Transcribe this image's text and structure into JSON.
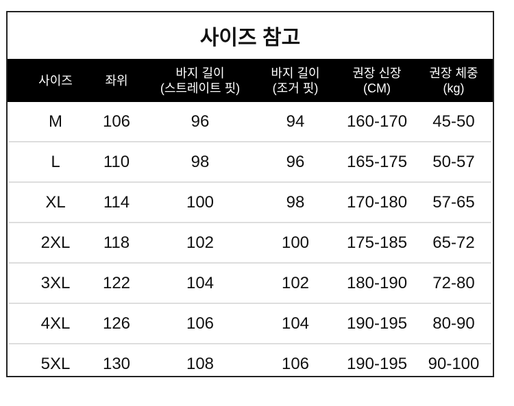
{
  "title": "사이즈 참고",
  "headers": [
    {
      "line1": "사이즈",
      "line2": ""
    },
    {
      "line1": "좌위",
      "line2": ""
    },
    {
      "line1": "바지 길이",
      "line2": "(스트레이트 핏)"
    },
    {
      "line1": "바지 길이",
      "line2": "(조거 핏)"
    },
    {
      "line1": "권장 신장",
      "line2": "(CM)"
    },
    {
      "line1": "권장 체중",
      "line2": "(kg)"
    }
  ],
  "rows": [
    [
      "M",
      "106",
      "96",
      "94",
      "160-170",
      "45-50"
    ],
    [
      "L",
      "110",
      "98",
      "96",
      "165-175",
      "50-57"
    ],
    [
      "XL",
      "114",
      "100",
      "98",
      "170-180",
      "57-65"
    ],
    [
      "2XL",
      "118",
      "102",
      "100",
      "175-185",
      "65-72"
    ],
    [
      "3XL",
      "122",
      "104",
      "102",
      "180-190",
      "72-80"
    ],
    [
      "4XL",
      "126",
      "106",
      "104",
      "190-195",
      "80-90"
    ],
    [
      "5XL",
      "130",
      "108",
      "106",
      "190-195",
      "90-100"
    ]
  ]
}
